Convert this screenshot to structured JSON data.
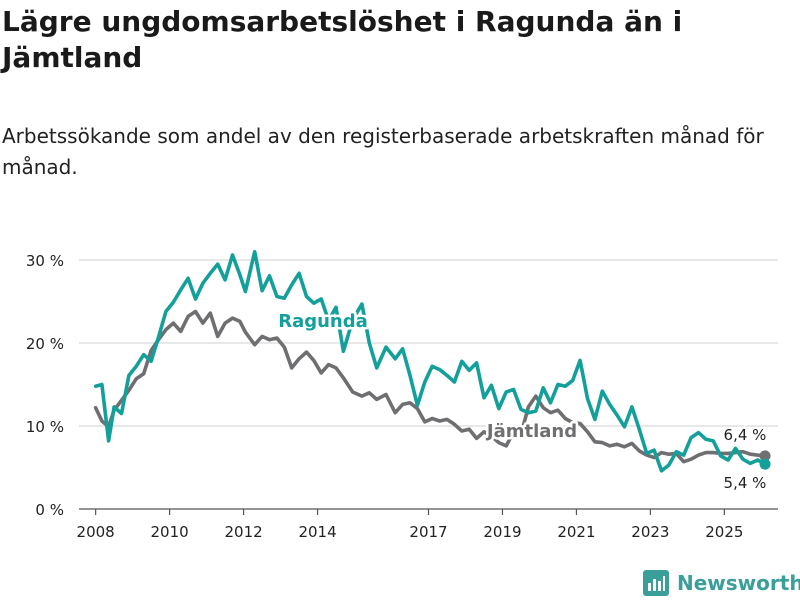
{
  "header": {
    "title": "Lägre ungdomsarbetslöshet i Ragunda än i Jämtland",
    "subtitle": "Arbetssökande som andel av den registerbaserade arbetskraften månad för månad."
  },
  "footer": {
    "brand": "Newsworthy"
  },
  "colors": {
    "ragunda": "#14a09a",
    "jamtland": "#6f6f72",
    "grid": "#d9d9d9",
    "axis": "#555555",
    "brand": "#3a9f99"
  },
  "chart_data": {
    "type": "line",
    "title": "Lägre ungdomsarbetslöshet i Ragunda än i Jämtland",
    "xlabel": "",
    "ylabel": "",
    "ylim": [
      0,
      30
    ],
    "xlim": [
      2007.55,
      2026.45
    ],
    "y_ticks": [
      0,
      10,
      20,
      30
    ],
    "y_tick_labels": [
      "0 %",
      "10 %",
      "20 %",
      "30 %"
    ],
    "x_ticks": [
      2008,
      2010,
      2012,
      2014,
      2017,
      2019,
      2021,
      2023,
      2025
    ],
    "x_tick_labels": [
      "2008",
      "2010",
      "2012",
      "2014",
      "2017",
      "2019",
      "2021",
      "2023",
      "2025"
    ],
    "grid": true,
    "series": [
      {
        "name": "Ragunda",
        "label": "Ragunda",
        "end_label": "5,4 %",
        "x": [
          2008.0,
          2008.17,
          2008.35,
          2008.5,
          2008.7,
          2008.9,
          2009.1,
          2009.3,
          2009.5,
          2009.7,
          2009.9,
          2010.1,
          2010.3,
          2010.5,
          2010.7,
          2010.9,
          2011.1,
          2011.3,
          2011.5,
          2011.7,
          2011.9,
          2012.05,
          2012.3,
          2012.5,
          2012.7,
          2012.9,
          2013.1,
          2013.3,
          2013.5,
          2013.7,
          2013.9,
          2014.1,
          2014.3,
          2014.5,
          2014.7,
          2014.95,
          2015.2,
          2015.4,
          2015.6,
          2015.85,
          2016.1,
          2016.3,
          2016.5,
          2016.7,
          2016.9,
          2017.1,
          2017.3,
          2017.5,
          2017.7,
          2017.9,
          2018.1,
          2018.3,
          2018.5,
          2018.7,
          2018.9,
          2019.1,
          2019.3,
          2019.5,
          2019.7,
          2019.9,
          2020.1,
          2020.3,
          2020.5,
          2020.7,
          2020.9,
          2021.1,
          2021.3,
          2021.5,
          2021.7,
          2021.9,
          2022.1,
          2022.3,
          2022.5,
          2022.7,
          2022.9,
          2023.1,
          2023.3,
          2023.5,
          2023.7,
          2023.9,
          2024.1,
          2024.3,
          2024.5,
          2024.7,
          2024.9,
          2025.1,
          2025.3,
          2025.5,
          2025.7,
          2025.9,
          2026.1
        ],
        "y": [
          14.8,
          15.0,
          8.2,
          12.3,
          11.5,
          16.1,
          17.2,
          18.6,
          17.8,
          20.7,
          23.8,
          24.9,
          26.4,
          27.8,
          25.3,
          27.2,
          28.4,
          29.5,
          27.6,
          30.6,
          28.2,
          26.2,
          31.0,
          26.3,
          28.1,
          25.6,
          25.4,
          27.0,
          28.4,
          25.6,
          24.8,
          25.3,
          22.7,
          24.3,
          19.0,
          22.8,
          24.7,
          20.0,
          17.0,
          19.5,
          18.1,
          19.3,
          16.1,
          12.5,
          15.3,
          17.2,
          16.8,
          16.1,
          15.3,
          17.8,
          16.7,
          17.6,
          13.4,
          14.9,
          12.1,
          14.1,
          14.4,
          12.0,
          11.6,
          11.8,
          14.6,
          12.8,
          15.0,
          14.8,
          15.5,
          17.9,
          13.3,
          10.8,
          14.2,
          12.6,
          11.3,
          9.9,
          12.3,
          9.6,
          6.7,
          7.1,
          4.6,
          5.3,
          6.9,
          6.5,
          8.6,
          9.2,
          8.4,
          8.2,
          6.4,
          5.9,
          7.3,
          6.0,
          5.5,
          5.9,
          5.4
        ]
      },
      {
        "name": "Jämtland",
        "label": "Jämtland",
        "end_label": "6,4 %",
        "x": [
          2008.0,
          2008.17,
          2008.35,
          2008.5,
          2008.7,
          2008.9,
          2009.1,
          2009.3,
          2009.5,
          2009.7,
          2009.9,
          2010.1,
          2010.3,
          2010.5,
          2010.7,
          2010.9,
          2011.1,
          2011.3,
          2011.5,
          2011.7,
          2011.9,
          2012.05,
          2012.3,
          2012.5,
          2012.7,
          2012.9,
          2013.1,
          2013.3,
          2013.5,
          2013.7,
          2013.9,
          2014.1,
          2014.3,
          2014.5,
          2014.7,
          2014.95,
          2015.2,
          2015.4,
          2015.6,
          2015.85,
          2016.1,
          2016.3,
          2016.5,
          2016.7,
          2016.9,
          2017.1,
          2017.3,
          2017.5,
          2017.7,
          2017.9,
          2018.1,
          2018.3,
          2018.5,
          2018.7,
          2018.9,
          2019.1,
          2019.3,
          2019.5,
          2019.7,
          2019.9,
          2020.1,
          2020.3,
          2020.5,
          2020.7,
          2020.9,
          2021.1,
          2021.3,
          2021.5,
          2021.7,
          2021.9,
          2022.1,
          2022.3,
          2022.5,
          2022.7,
          2022.9,
          2023.1,
          2023.3,
          2023.5,
          2023.7,
          2023.9,
          2024.1,
          2024.3,
          2024.5,
          2024.7,
          2024.9,
          2025.1,
          2025.3,
          2025.5,
          2025.7,
          2025.9,
          2026.1
        ],
        "y": [
          12.2,
          10.6,
          9.9,
          11.9,
          13.1,
          14.3,
          15.7,
          16.3,
          19.1,
          20.4,
          21.6,
          22.4,
          21.4,
          23.2,
          23.8,
          22.4,
          23.6,
          20.8,
          22.4,
          23.0,
          22.6,
          21.3,
          19.8,
          20.8,
          20.4,
          20.6,
          19.5,
          17.0,
          18.1,
          18.9,
          17.9,
          16.4,
          17.4,
          17.0,
          15.8,
          14.1,
          13.6,
          14.0,
          13.2,
          13.8,
          11.6,
          12.6,
          12.8,
          12.1,
          10.5,
          10.9,
          10.6,
          10.8,
          10.2,
          9.4,
          9.6,
          8.5,
          9.3,
          8.8,
          8.0,
          7.6,
          9.3,
          9.0,
          12.3,
          13.6,
          12.2,
          11.6,
          11.9,
          10.9,
          10.4,
          10.3,
          9.3,
          8.1,
          8.0,
          7.6,
          7.8,
          7.5,
          7.9,
          7.0,
          6.5,
          6.2,
          6.8,
          6.6,
          6.7,
          5.7,
          6.0,
          6.5,
          6.8,
          6.8,
          6.7,
          6.7,
          6.8,
          6.9,
          6.6,
          6.5,
          6.4
        ]
      }
    ]
  }
}
